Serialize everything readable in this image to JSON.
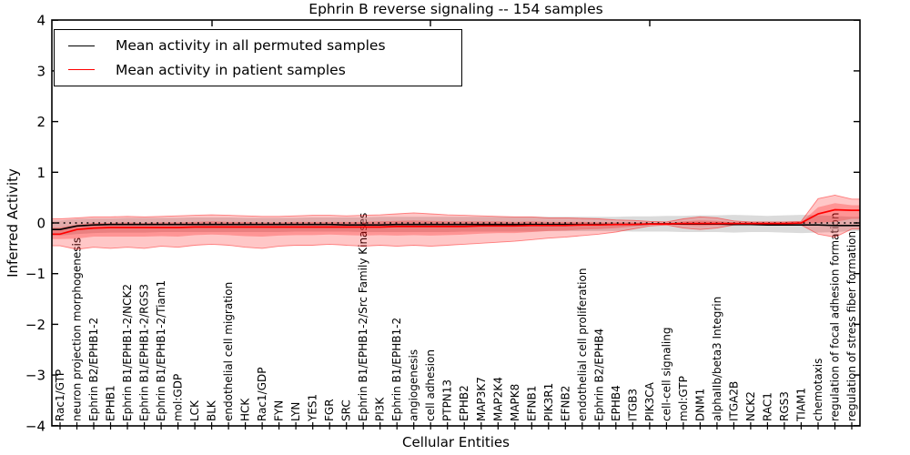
{
  "chart_data": {
    "type": "line",
    "title": "Ephrin B reverse signaling -- 154 samples",
    "xlabel": "Cellular Entities",
    "ylabel": "Inferred Activity",
    "ylim": [
      -4,
      4
    ],
    "yticks": [
      4,
      3,
      2,
      1,
      0,
      -1,
      -2,
      -3,
      -4
    ],
    "ytick_labels": [
      "4",
      "3",
      "2",
      "1",
      "0",
      "−1",
      "−2",
      "−3",
      "−4"
    ],
    "grid": false,
    "zero_line_style": "dotted",
    "legend_position": "upper-left",
    "legend": [
      {
        "label": "Mean activity in all permuted samples",
        "color": "#000000"
      },
      {
        "label": "Mean activity in patient samples",
        "color": "#ff0000"
      }
    ],
    "colors": {
      "permuted_line": "#000000",
      "patient_line": "#ff0000",
      "patient_band": "#ff0000",
      "permuted_band": "#b0b0b0",
      "axis": "#000000",
      "background": "#ffffff"
    },
    "x_labels": [
      "Rac1/GTP",
      "neuron projection morphogenesis",
      "Ephrin B2/EPHB1-2",
      "EPHB1",
      "Ephrin B1/EPHB1-2/NCK2",
      "Ephrin B1/EPHB1-2/RGS3",
      "Ephrin B1/EPHB1-2/Tiam1",
      "mol:GDP",
      "LCK",
      "BLK",
      "endothelial cell migration",
      "HCK",
      "Rac1/GDP",
      "FYN",
      "LYN",
      "YES1",
      "FGR",
      "SRC",
      "Ephrin B1/EPHB1-2/Src Family Kinases",
      "PI3K",
      "Ephrin B1/EPHB1-2",
      "angiogenesis",
      "cell adhesion",
      "PTPN13",
      "EPHB2",
      "MAP3K7",
      "MAP2K4",
      "MAPK8",
      "EFNB1",
      "PIK3R1",
      "EFNB2",
      "endothelial cell proliferation",
      "Ephrin B2/EPHB4",
      "EPHB4",
      "ITGB3",
      "PIK3CA",
      "cell-cell signaling",
      "mol:GTP",
      "DNM1",
      "alphaIIb/beta3 Integrin",
      "ITGA2B",
      "NCK2",
      "RAC1",
      "RGS3",
      "TIAM1",
      "chemotaxis",
      "regulation of focal adhesion formation",
      "regulation of stress fiber formation"
    ],
    "series": {
      "patient_mean": [
        -0.22,
        -0.13,
        -0.1,
        -0.09,
        -0.09,
        -0.09,
        -0.09,
        -0.09,
        -0.08,
        -0.08,
        -0.08,
        -0.08,
        -0.08,
        -0.08,
        -0.08,
        -0.08,
        -0.08,
        -0.08,
        -0.08,
        -0.08,
        -0.07,
        -0.07,
        -0.07,
        -0.07,
        -0.07,
        -0.06,
        -0.06,
        -0.06,
        -0.05,
        -0.05,
        -0.05,
        -0.04,
        -0.04,
        -0.03,
        -0.03,
        -0.02,
        -0.02,
        -0.01,
        -0.01,
        -0.01,
        -0.01,
        -0.01,
        -0.01,
        -0.01,
        0.0,
        0.18,
        0.26,
        0.25
      ],
      "permuted_mean": [
        -0.13,
        -0.06,
        -0.04,
        -0.03,
        -0.03,
        -0.03,
        -0.03,
        -0.03,
        -0.03,
        -0.03,
        -0.03,
        -0.03,
        -0.03,
        -0.03,
        -0.03,
        -0.03,
        -0.03,
        -0.04,
        -0.04,
        -0.04,
        -0.03,
        -0.03,
        -0.03,
        -0.03,
        -0.03,
        -0.03,
        -0.03,
        -0.03,
        -0.03,
        -0.03,
        -0.03,
        -0.03,
        -0.03,
        -0.03,
        -0.03,
        -0.02,
        -0.02,
        -0.02,
        -0.02,
        -0.02,
        -0.03,
        -0.03,
        -0.04,
        -0.04,
        -0.04,
        -0.04,
        -0.05,
        -0.05
      ],
      "patient_outer_high": [
        0.08,
        0.1,
        0.12,
        0.12,
        0.13,
        0.12,
        0.13,
        0.14,
        0.15,
        0.16,
        0.15,
        0.14,
        0.13,
        0.13,
        0.14,
        0.15,
        0.15,
        0.14,
        0.15,
        0.16,
        0.18,
        0.2,
        0.18,
        0.16,
        0.15,
        0.14,
        0.13,
        0.12,
        0.12,
        0.1,
        0.1,
        0.09,
        0.08,
        0.06,
        0.05,
        0.03,
        0.02,
        0.08,
        0.12,
        0.1,
        0.04,
        0.02,
        0.02,
        0.02,
        0.03,
        0.48,
        0.55,
        0.47
      ],
      "patient_outer_low": [
        -0.45,
        -0.52,
        -0.48,
        -0.5,
        -0.48,
        -0.5,
        -0.46,
        -0.48,
        -0.44,
        -0.42,
        -0.44,
        -0.48,
        -0.5,
        -0.46,
        -0.44,
        -0.44,
        -0.42,
        -0.44,
        -0.46,
        -0.44,
        -0.46,
        -0.44,
        -0.46,
        -0.44,
        -0.42,
        -0.4,
        -0.38,
        -0.36,
        -0.33,
        -0.3,
        -0.28,
        -0.25,
        -0.22,
        -0.18,
        -0.12,
        -0.06,
        -0.04,
        -0.1,
        -0.13,
        -0.1,
        -0.04,
        -0.03,
        -0.03,
        -0.03,
        -0.04,
        -0.22,
        -0.28,
        -0.12
      ],
      "patient_inner_high": [
        -0.09,
        -0.03,
        0.0,
        0.0,
        0.01,
        0.0,
        0.01,
        0.01,
        0.02,
        0.03,
        0.02,
        0.02,
        0.01,
        0.01,
        0.02,
        0.02,
        0.02,
        0.02,
        0.02,
        0.03,
        0.04,
        0.05,
        0.04,
        0.03,
        0.03,
        0.03,
        0.03,
        0.02,
        0.03,
        0.02,
        0.02,
        0.02,
        0.01,
        0.01,
        0.01,
        0.0,
        0.0,
        0.03,
        0.05,
        0.04,
        0.01,
        0.0,
        0.0,
        0.0,
        0.01,
        0.31,
        0.39,
        0.35
      ],
      "patient_inner_low": [
        -0.32,
        -0.31,
        -0.27,
        -0.27,
        -0.27,
        -0.27,
        -0.26,
        -0.27,
        -0.24,
        -0.23,
        -0.24,
        -0.26,
        -0.27,
        -0.25,
        -0.24,
        -0.24,
        -0.23,
        -0.24,
        -0.25,
        -0.24,
        -0.25,
        -0.24,
        -0.25,
        -0.24,
        -0.23,
        -0.21,
        -0.2,
        -0.2,
        -0.18,
        -0.16,
        -0.15,
        -0.13,
        -0.12,
        -0.1,
        -0.07,
        -0.04,
        -0.03,
        -0.05,
        -0.06,
        -0.05,
        -0.02,
        -0.02,
        -0.02,
        -0.02,
        -0.02,
        0.0,
        0.02,
        0.08
      ],
      "permuted_band_high": [
        0.05,
        0.08,
        0.09,
        0.09,
        0.1,
        0.1,
        0.1,
        0.1,
        0.11,
        0.11,
        0.11,
        0.1,
        0.1,
        0.1,
        0.1,
        0.11,
        0.11,
        0.11,
        0.11,
        0.12,
        0.12,
        0.12,
        0.12,
        0.12,
        0.12,
        0.12,
        0.12,
        0.12,
        0.12,
        0.12,
        0.12,
        0.12,
        0.12,
        0.12,
        0.13,
        0.13,
        0.14,
        0.14,
        0.15,
        0.15,
        0.16,
        0.15,
        0.14,
        0.15,
        0.16,
        0.15,
        0.14,
        0.12
      ],
      "permuted_band_low": [
        -0.25,
        -0.22,
        -0.2,
        -0.19,
        -0.19,
        -0.19,
        -0.18,
        -0.18,
        -0.18,
        -0.18,
        -0.18,
        -0.18,
        -0.18,
        -0.18,
        -0.17,
        -0.17,
        -0.17,
        -0.17,
        -0.18,
        -0.18,
        -0.18,
        -0.18,
        -0.18,
        -0.18,
        -0.17,
        -0.17,
        -0.17,
        -0.17,
        -0.17,
        -0.16,
        -0.16,
        -0.16,
        -0.16,
        -0.16,
        -0.17,
        -0.17,
        -0.17,
        -0.18,
        -0.18,
        -0.18,
        -0.19,
        -0.18,
        -0.18,
        -0.19,
        -0.2,
        -0.19,
        -0.18,
        -0.16
      ]
    }
  }
}
